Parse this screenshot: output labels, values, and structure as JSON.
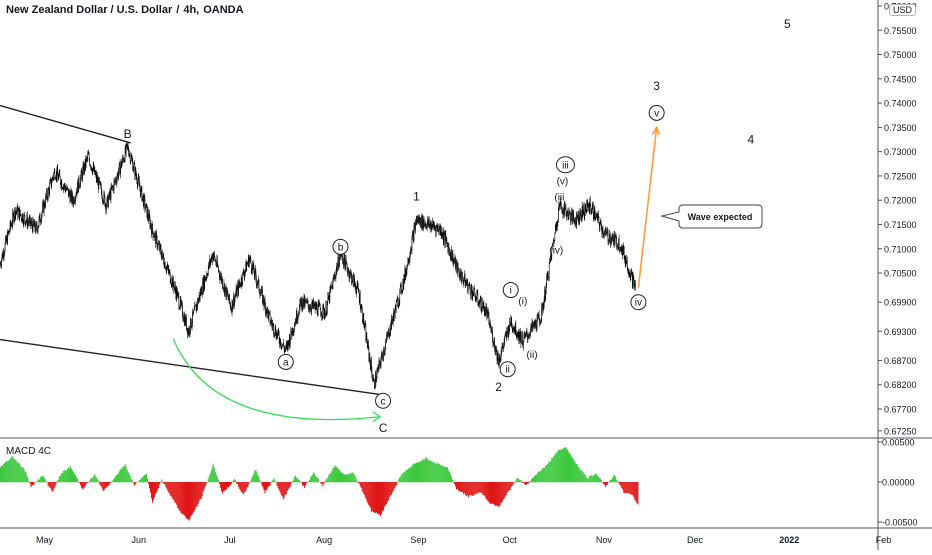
{
  "header": {
    "symbol": "New Zealand Dollar / U.S. Dollar",
    "timeframe": "4h",
    "exchange": "OANDA",
    "separator_1": "/",
    "separator_2": ",",
    "separator_3": ","
  },
  "currency_badge": "USD",
  "indicator_label": "MACD 4C",
  "callout_text": "Wave expected",
  "colors": {
    "candles": "#111111",
    "trendline": "#222222",
    "projection_arrow": "#ff9a3c",
    "curve_arrow": "#33dd55",
    "hist_pos": "#3cc83c",
    "hist_neg": "#e01616",
    "axis_text": "#131722",
    "divider": "#555555"
  },
  "chart_data": [
    {
      "type": "candlestick",
      "title": "New Zealand Dollar / U.S. Dollar, 4h, OANDA",
      "x_tick_labels": [
        "May",
        "Jun",
        "Jul",
        "Aug",
        "Sep",
        "Oct",
        "Nov",
        "Dec",
        "2022",
        "Feb"
      ],
      "y_tick_labels": [
        "0.76000",
        "0.75500",
        "0.75000",
        "0.74500",
        "0.74000",
        "0.73500",
        "0.73000",
        "0.72500",
        "0.72000",
        "0.71500",
        "0.71000",
        "0.70500",
        "0.69900",
        "0.69300",
        "0.68700",
        "0.68200",
        "0.67700",
        "0.67250"
      ],
      "ylim": [
        0.67,
        0.76
      ],
      "price_path": [
        {
          "date": "2021-04-19",
          "price": 0.707
        },
        {
          "date": "2021-04-24",
          "price": 0.718
        },
        {
          "date": "2021-05-01",
          "price": 0.714
        },
        {
          "date": "2021-05-07",
          "price": 0.726
        },
        {
          "date": "2021-05-13",
          "price": 0.72
        },
        {
          "date": "2021-05-18",
          "price": 0.729
        },
        {
          "date": "2021-05-24",
          "price": 0.719
        },
        {
          "date": "2021-05-31",
          "price": 0.731
        },
        {
          "date": "2021-06-08",
          "price": 0.714
        },
        {
          "date": "2021-06-16",
          "price": 0.701
        },
        {
          "date": "2021-06-20",
          "price": 0.693
        },
        {
          "date": "2021-06-28",
          "price": 0.709
        },
        {
          "date": "2021-07-04",
          "price": 0.698
        },
        {
          "date": "2021-07-10",
          "price": 0.708
        },
        {
          "date": "2021-07-17",
          "price": 0.695
        },
        {
          "date": "2021-07-22",
          "price": 0.689
        },
        {
          "date": "2021-07-27",
          "price": 0.699
        },
        {
          "date": "2021-08-04",
          "price": 0.697
        },
        {
          "date": "2021-08-09",
          "price": 0.709
        },
        {
          "date": "2021-08-15",
          "price": 0.701
        },
        {
          "date": "2021-08-20",
          "price": 0.682
        },
        {
          "date": "2021-08-25",
          "price": 0.693
        },
        {
          "date": "2021-08-30",
          "price": 0.704
        },
        {
          "date": "2021-09-03",
          "price": 0.716
        },
        {
          "date": "2021-09-11",
          "price": 0.714
        },
        {
          "date": "2021-09-17",
          "price": 0.705
        },
        {
          "date": "2021-09-26",
          "price": 0.697
        },
        {
          "date": "2021-09-30",
          "price": 0.687
        },
        {
          "date": "2021-10-04",
          "price": 0.695
        },
        {
          "date": "2021-10-08",
          "price": 0.691
        },
        {
          "date": "2021-10-14",
          "price": 0.696
        },
        {
          "date": "2021-10-20",
          "price": 0.719
        },
        {
          "date": "2021-10-25",
          "price": 0.716
        },
        {
          "date": "2021-10-30",
          "price": 0.719
        },
        {
          "date": "2021-11-04",
          "price": 0.713
        },
        {
          "date": "2021-11-09",
          "price": 0.711
        },
        {
          "date": "2021-11-14",
          "price": 0.702
        }
      ],
      "wave_labels": [
        {
          "text": "B",
          "date": "2021-05-31",
          "price": 0.7338,
          "circled": false
        },
        {
          "text": "a",
          "date": "2021-07-22",
          "price": 0.6867,
          "circled": true
        },
        {
          "text": "b",
          "date": "2021-08-09",
          "price": 0.7104,
          "circled": true
        },
        {
          "text": "c",
          "date": "2021-08-23",
          "price": 0.6787,
          "circled": true
        },
        {
          "text": "C",
          "date": "2021-08-23",
          "price": 0.6733,
          "circled": false
        },
        {
          "text": "1",
          "date": "2021-09-03",
          "price": 0.721,
          "circled": false
        },
        {
          "text": "2",
          "date": "2021-09-30",
          "price": 0.6817,
          "circled": false
        },
        {
          "text": "ii",
          "date": "2021-10-03",
          "price": 0.6852,
          "circled": true
        },
        {
          "text": "i",
          "date": "2021-10-04",
          "price": 0.7015,
          "circled": true
        },
        {
          "text": "(i)",
          "date": "2021-10-08",
          "price": 0.6992,
          "circled": false
        },
        {
          "text": "(ii)",
          "date": "2021-10-11",
          "price": 0.6882,
          "circled": false
        },
        {
          "text": "(iv)",
          "date": "2021-10-19",
          "price": 0.7097,
          "circled": false
        },
        {
          "text": "(iii",
          "date": "2021-10-20",
          "price": 0.7207,
          "circled": false
        },
        {
          "text": "(v)",
          "date": "2021-10-21",
          "price": 0.724,
          "circled": false
        },
        {
          "text": "iii",
          "date": "2021-10-22",
          "price": 0.7273,
          "circled": true
        },
        {
          "text": "iv",
          "date": "2021-11-15",
          "price": 0.699,
          "circled": true
        },
        {
          "text": "v",
          "date": "2021-11-21",
          "price": 0.738,
          "circled": true
        },
        {
          "text": "3",
          "date": "2021-11-21",
          "price": 0.7437,
          "circled": false
        },
        {
          "text": "4",
          "date": "2021-12-22",
          "price": 0.7327,
          "circled": false
        },
        {
          "text": "5",
          "date": "2022-01-03",
          "price": 0.7565,
          "circled": false
        }
      ],
      "trendlines": [
        {
          "from": {
            "date": "2021-04-19",
            "price": 0.7395
          },
          "to": {
            "date": "2021-06-01",
            "price": 0.7318
          }
        },
        {
          "from": {
            "date": "2021-04-19",
            "price": 0.6913
          },
          "to": {
            "date": "2021-08-23",
            "price": 0.6799
          }
        }
      ],
      "projection_arrow": {
        "from": {
          "date": "2021-11-15",
          "price": 0.702
        },
        "to": {
          "date": "2021-11-21",
          "price": 0.735
        }
      },
      "curve_arrow": {
        "from": {
          "date": "2021-06-15",
          "price": 0.6915
        },
        "to": {
          "date": "2021-08-23",
          "price": 0.6787
        }
      },
      "callout": {
        "date": "2021-11-21",
        "price": 0.7155
      }
    },
    {
      "type": "bar",
      "title": "MACD 4C",
      "y_tick_labels": [
        "0.00500",
        "0.00000",
        "-0.00500"
      ],
      "ylim": [
        -0.0058,
        0.0058
      ],
      "histogram_path": [
        {
          "date": "2021-04-19",
          "value": 0.0019
        },
        {
          "date": "2021-04-23",
          "value": 0.0032
        },
        {
          "date": "2021-04-27",
          "value": 0.0015
        },
        {
          "date": "2021-04-29",
          "value": -0.0005
        },
        {
          "date": "2021-05-03",
          "value": 0.0008
        },
        {
          "date": "2021-05-06",
          "value": -0.0012
        },
        {
          "date": "2021-05-09",
          "value": 0.0011
        },
        {
          "date": "2021-05-12",
          "value": 0.0019
        },
        {
          "date": "2021-05-16",
          "value": -0.0008
        },
        {
          "date": "2021-05-20",
          "value": 0.0009
        },
        {
          "date": "2021-05-23",
          "value": -0.0011
        },
        {
          "date": "2021-05-27",
          "value": 0.0008
        },
        {
          "date": "2021-05-30",
          "value": 0.0022
        },
        {
          "date": "2021-06-02",
          "value": -0.0004
        },
        {
          "date": "2021-06-06",
          "value": 0.0011
        },
        {
          "date": "2021-06-08",
          "value": -0.0025
        },
        {
          "date": "2021-06-11",
          "value": 0.0003
        },
        {
          "date": "2021-06-14",
          "value": -0.0016
        },
        {
          "date": "2021-06-17",
          "value": -0.0036
        },
        {
          "date": "2021-06-20",
          "value": -0.0048
        },
        {
          "date": "2021-06-24",
          "value": -0.002
        },
        {
          "date": "2021-06-28",
          "value": 0.0022
        },
        {
          "date": "2021-07-01",
          "value": -0.0014
        },
        {
          "date": "2021-07-05",
          "value": 0.0003
        },
        {
          "date": "2021-07-08",
          "value": -0.0016
        },
        {
          "date": "2021-07-12",
          "value": 0.0016
        },
        {
          "date": "2021-07-15",
          "value": -0.0013
        },
        {
          "date": "2021-07-18",
          "value": 0.0005
        },
        {
          "date": "2021-07-21",
          "value": -0.0021
        },
        {
          "date": "2021-07-25",
          "value": 0.0008
        },
        {
          "date": "2021-07-28",
          "value": -0.0006
        },
        {
          "date": "2021-07-31",
          "value": 0.0011
        },
        {
          "date": "2021-08-03",
          "value": -0.0004
        },
        {
          "date": "2021-08-07",
          "value": 0.0021
        },
        {
          "date": "2021-08-10",
          "value": 0.0009
        },
        {
          "date": "2021-08-13",
          "value": 0.0012
        },
        {
          "date": "2021-08-16",
          "value": -0.001
        },
        {
          "date": "2021-08-19",
          "value": -0.0036
        },
        {
          "date": "2021-08-22",
          "value": -0.0041
        },
        {
          "date": "2021-08-26",
          "value": -0.0012
        },
        {
          "date": "2021-08-29",
          "value": 0.001
        },
        {
          "date": "2021-09-02",
          "value": 0.0022
        },
        {
          "date": "2021-09-06",
          "value": 0.003
        },
        {
          "date": "2021-09-09",
          "value": 0.0024
        },
        {
          "date": "2021-09-13",
          "value": 0.0018
        },
        {
          "date": "2021-09-16",
          "value": -0.0008
        },
        {
          "date": "2021-09-20",
          "value": -0.0018
        },
        {
          "date": "2021-09-24",
          "value": -0.0012
        },
        {
          "date": "2021-09-27",
          "value": -0.0026
        },
        {
          "date": "2021-09-30",
          "value": -0.003
        },
        {
          "date": "2021-10-03",
          "value": -0.0012
        },
        {
          "date": "2021-10-06",
          "value": 0.0005
        },
        {
          "date": "2021-10-09",
          "value": -0.0004
        },
        {
          "date": "2021-10-12",
          "value": 0.0009
        },
        {
          "date": "2021-10-16",
          "value": 0.0022
        },
        {
          "date": "2021-10-19",
          "value": 0.0038
        },
        {
          "date": "2021-10-22",
          "value": 0.0043
        },
        {
          "date": "2021-10-26",
          "value": 0.002
        },
        {
          "date": "2021-10-29",
          "value": 0.0005
        },
        {
          "date": "2021-11-01",
          "value": 0.0011
        },
        {
          "date": "2021-11-04",
          "value": -0.0005
        },
        {
          "date": "2021-11-07",
          "value": 0.0008
        },
        {
          "date": "2021-11-10",
          "value": -0.0012
        },
        {
          "date": "2021-11-13",
          "value": -0.0016
        },
        {
          "date": "2021-11-15",
          "value": -0.003
        }
      ]
    }
  ]
}
